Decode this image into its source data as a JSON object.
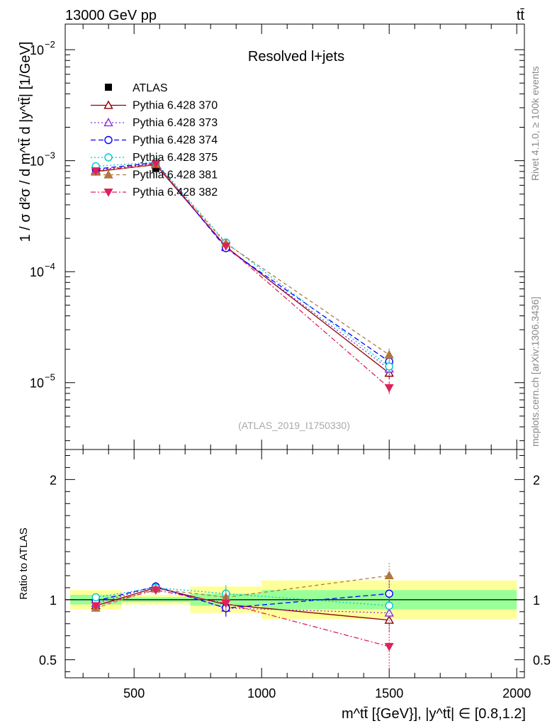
{
  "header": {
    "left": "13000 GeV pp",
    "right": "tt̄"
  },
  "side_text": {
    "upper": "Rivet 4.1.0, ≥ 100k events",
    "lower": "mcplots.cern.ch [arXiv:1306.3436]"
  },
  "chart_data": [
    {
      "type": "line",
      "panel": "main",
      "title": "Resolved l+jets",
      "watermark": "(ATLAS_2019_I1750330)",
      "ylabel": "1 / σ d²σ / d m^tt̄ d |y^tt̄| [1/GeV]",
      "yscale": "log",
      "ylim": [
        2.5e-06,
        0.017
      ],
      "xlim": [
        230,
        2030
      ],
      "y_ticks": [
        {
          "v": 1e-05,
          "base": "10",
          "exp": "−5"
        },
        {
          "v": 0.0001,
          "base": "10",
          "exp": "−4"
        },
        {
          "v": 0.001,
          "base": "10",
          "exp": "−3"
        },
        {
          "v": 0.01,
          "base": "10",
          "exp": "−2"
        }
      ],
      "x": [
        350,
        585,
        860,
        1500
      ],
      "data": {
        "name": "ATLAS",
        "values": [
          0.00085,
          0.00085,
          0.000175,
          1.48e-05
        ]
      },
      "series": [
        {
          "name": "Pythia 6.428 370",
          "color": "#8b0000",
          "dash": "",
          "marker": "triangle-open",
          "values": [
            0.0008,
            0.00092,
            0.000168,
            1.22e-05
          ]
        },
        {
          "name": "Pythia 6.428 373",
          "color": "#8a2be2",
          "dash": "2,3",
          "marker": "triangle-open",
          "values": [
            0.00082,
            0.00095,
            0.000165,
            1.33e-05
          ]
        },
        {
          "name": "Pythia 6.428 374",
          "color": "#0000ff",
          "dash": "7,4",
          "marker": "circle-open",
          "values": [
            0.00084,
            0.00096,
            0.000163,
            1.55e-05
          ]
        },
        {
          "name": "Pythia 6.428 375",
          "color": "#00c8c8",
          "dash": "2,3",
          "marker": "circle-open",
          "values": [
            0.00089,
            0.00097,
            0.000183,
            1.4e-05
          ]
        },
        {
          "name": "Pythia 6.428 381",
          "color": "#b07840",
          "dash": "5,4",
          "marker": "triangle-filled",
          "values": [
            0.00079,
            0.00093,
            0.00018,
            1.78e-05
          ]
        },
        {
          "name": "Pythia 6.428 382",
          "color": "#e0205a",
          "dash": "7,3,2,3",
          "marker": "triangle-down-filled",
          "values": [
            0.00081,
            0.00094,
            0.00017,
            9e-06
          ]
        }
      ]
    },
    {
      "type": "line",
      "panel": "ratio",
      "ylabel": "Ratio to ATLAS",
      "ylim": [
        0.35,
        2.25
      ],
      "xlim": [
        230,
        2030
      ],
      "y_ticks": [
        0.5,
        1,
        2
      ],
      "x_ticks": [
        500,
        1000,
        1500,
        2000
      ],
      "xlabel": "m^tt̄ [{GeV}], |y^tt̄| ∈ [0.8,1.2]",
      "bands": [
        {
          "x0": 250,
          "x1": 450,
          "green": [
            0.96,
            1.04
          ],
          "yellow": [
            0.92,
            1.08
          ]
        },
        {
          "x0": 450,
          "x1": 720,
          "green": [
            0.98,
            1.02
          ],
          "yellow": [
            0.96,
            1.04
          ]
        },
        {
          "x0": 720,
          "x1": 1000,
          "green": [
            0.95,
            1.05
          ],
          "yellow": [
            0.89,
            1.11
          ]
        },
        {
          "x0": 1000,
          "x1": 2000,
          "green": [
            0.92,
            1.08
          ],
          "yellow": [
            0.84,
            1.16
          ]
        }
      ],
      "x": [
        350,
        585,
        860,
        1500
      ],
      "series": [
        {
          "name": "Pythia 6.428 370",
          "values": [
            0.95,
            1.1,
            0.96,
            0.83
          ]
        },
        {
          "name": "Pythia 6.428 373",
          "values": [
            0.97,
            1.11,
            0.93,
            0.89
          ]
        },
        {
          "name": "Pythia 6.428 374",
          "values": [
            0.99,
            1.11,
            0.93,
            1.05
          ]
        },
        {
          "name": "Pythia 6.428 375",
          "values": [
            1.02,
            1.1,
            1.05,
            0.95
          ]
        },
        {
          "name": "Pythia 6.428 381",
          "values": [
            0.93,
            1.09,
            1.02,
            1.2
          ]
        },
        {
          "name": "Pythia 6.428 382",
          "values": [
            0.95,
            1.08,
            0.97,
            0.61
          ]
        }
      ]
    }
  ]
}
